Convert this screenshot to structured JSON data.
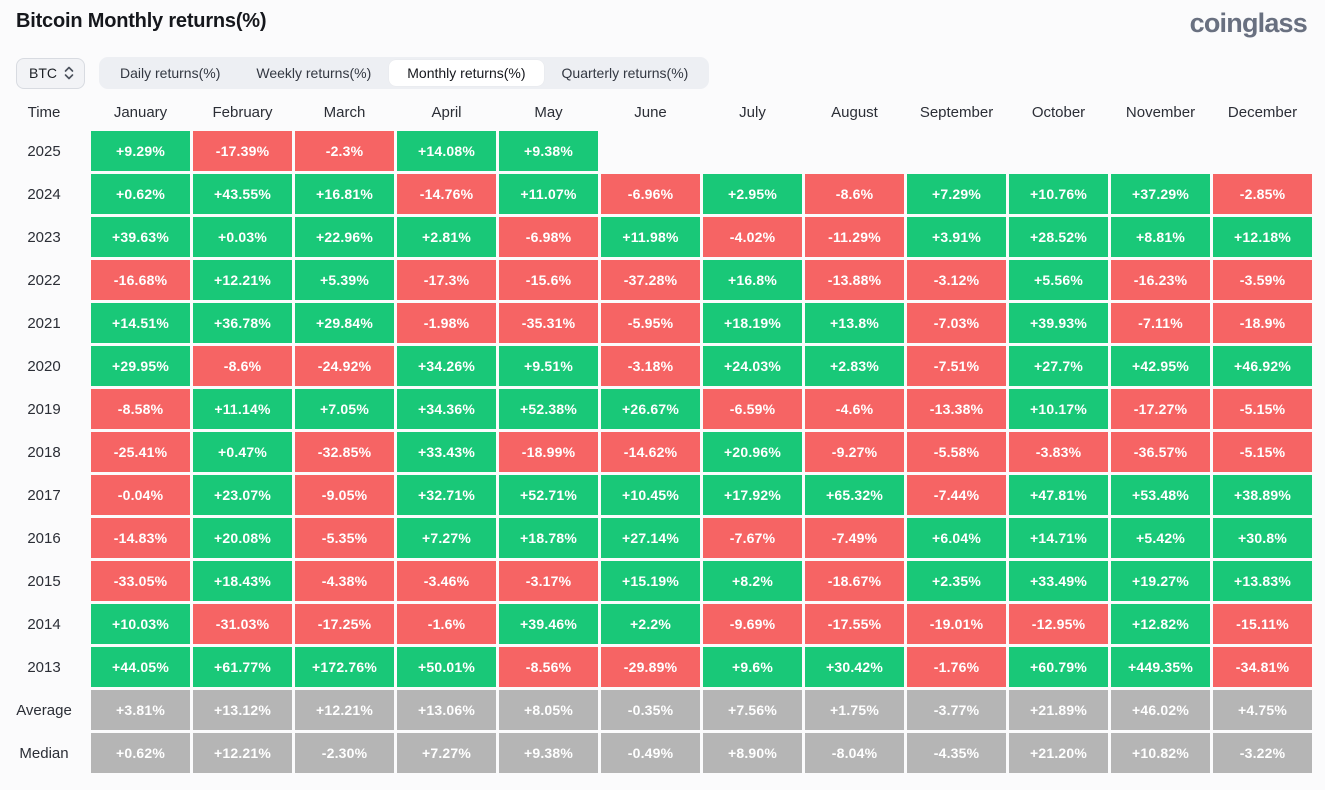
{
  "header": {
    "title": "Bitcoin Monthly returns(%)",
    "logo_text": "coinglass"
  },
  "controls": {
    "symbol_select": {
      "value": "BTC",
      "icon": "select-updown-icon"
    },
    "tabs": [
      {
        "label": "Daily returns(%)",
        "active": false
      },
      {
        "label": "Weekly returns(%)",
        "active": false
      },
      {
        "label": "Monthly returns(%)",
        "active": true
      },
      {
        "label": "Quarterly returns(%)",
        "active": false
      }
    ]
  },
  "chart_data": {
    "type": "heatmap",
    "title": "Bitcoin Monthly returns(%)",
    "time_column_header": "Time",
    "columns": [
      "January",
      "February",
      "March",
      "April",
      "May",
      "June",
      "July",
      "August",
      "September",
      "October",
      "November",
      "December"
    ],
    "rows": [
      {
        "label": "2025",
        "kind": "year",
        "values": [
          "+9.29%",
          "-17.39%",
          "-2.3%",
          "+14.08%",
          "+9.38%",
          "",
          "",
          "",
          "",
          "",
          "",
          ""
        ]
      },
      {
        "label": "2024",
        "kind": "year",
        "values": [
          "+0.62%",
          "+43.55%",
          "+16.81%",
          "-14.76%",
          "+11.07%",
          "-6.96%",
          "+2.95%",
          "-8.6%",
          "+7.29%",
          "+10.76%",
          "+37.29%",
          "-2.85%"
        ]
      },
      {
        "label": "2023",
        "kind": "year",
        "values": [
          "+39.63%",
          "+0.03%",
          "+22.96%",
          "+2.81%",
          "-6.98%",
          "+11.98%",
          "-4.02%",
          "-11.29%",
          "+3.91%",
          "+28.52%",
          "+8.81%",
          "+12.18%"
        ]
      },
      {
        "label": "2022",
        "kind": "year",
        "values": [
          "-16.68%",
          "+12.21%",
          "+5.39%",
          "-17.3%",
          "-15.6%",
          "-37.28%",
          "+16.8%",
          "-13.88%",
          "-3.12%",
          "+5.56%",
          "-16.23%",
          "-3.59%"
        ]
      },
      {
        "label": "2021",
        "kind": "year",
        "values": [
          "+14.51%",
          "+36.78%",
          "+29.84%",
          "-1.98%",
          "-35.31%",
          "-5.95%",
          "+18.19%",
          "+13.8%",
          "-7.03%",
          "+39.93%",
          "-7.11%",
          "-18.9%"
        ]
      },
      {
        "label": "2020",
        "kind": "year",
        "values": [
          "+29.95%",
          "-8.6%",
          "-24.92%",
          "+34.26%",
          "+9.51%",
          "-3.18%",
          "+24.03%",
          "+2.83%",
          "-7.51%",
          "+27.7%",
          "+42.95%",
          "+46.92%"
        ]
      },
      {
        "label": "2019",
        "kind": "year",
        "values": [
          "-8.58%",
          "+11.14%",
          "+7.05%",
          "+34.36%",
          "+52.38%",
          "+26.67%",
          "-6.59%",
          "-4.6%",
          "-13.38%",
          "+10.17%",
          "-17.27%",
          "-5.15%"
        ]
      },
      {
        "label": "2018",
        "kind": "year",
        "values": [
          "-25.41%",
          "+0.47%",
          "-32.85%",
          "+33.43%",
          "-18.99%",
          "-14.62%",
          "+20.96%",
          "-9.27%",
          "-5.58%",
          "-3.83%",
          "-36.57%",
          "-5.15%"
        ]
      },
      {
        "label": "2017",
        "kind": "year",
        "values": [
          "-0.04%",
          "+23.07%",
          "-9.05%",
          "+32.71%",
          "+52.71%",
          "+10.45%",
          "+17.92%",
          "+65.32%",
          "-7.44%",
          "+47.81%",
          "+53.48%",
          "+38.89%"
        ]
      },
      {
        "label": "2016",
        "kind": "year",
        "values": [
          "-14.83%",
          "+20.08%",
          "-5.35%",
          "+7.27%",
          "+18.78%",
          "+27.14%",
          "-7.67%",
          "-7.49%",
          "+6.04%",
          "+14.71%",
          "+5.42%",
          "+30.8%"
        ]
      },
      {
        "label": "2015",
        "kind": "year",
        "values": [
          "-33.05%",
          "+18.43%",
          "-4.38%",
          "-3.46%",
          "-3.17%",
          "+15.19%",
          "+8.2%",
          "-18.67%",
          "+2.35%",
          "+33.49%",
          "+19.27%",
          "+13.83%"
        ]
      },
      {
        "label": "2014",
        "kind": "year",
        "values": [
          "+10.03%",
          "-31.03%",
          "-17.25%",
          "-1.6%",
          "+39.46%",
          "+2.2%",
          "-9.69%",
          "-17.55%",
          "-19.01%",
          "-12.95%",
          "+12.82%",
          "-15.11%"
        ]
      },
      {
        "label": "2013",
        "kind": "year",
        "values": [
          "+44.05%",
          "+61.77%",
          "+172.76%",
          "+50.01%",
          "-8.56%",
          "-29.89%",
          "+9.6%",
          "+30.42%",
          "-1.76%",
          "+60.79%",
          "+449.35%",
          "-34.81%"
        ]
      },
      {
        "label": "Average",
        "kind": "summary",
        "values": [
          "+3.81%",
          "+13.12%",
          "+12.21%",
          "+13.06%",
          "+8.05%",
          "-0.35%",
          "+7.56%",
          "+1.75%",
          "-3.77%",
          "+21.89%",
          "+46.02%",
          "+4.75%"
        ]
      },
      {
        "label": "Median",
        "kind": "summary",
        "values": [
          "+0.62%",
          "+12.21%",
          "-2.30%",
          "+7.27%",
          "+9.38%",
          "-0.49%",
          "+8.90%",
          "-8.04%",
          "-4.35%",
          "+21.20%",
          "+10.82%",
          "-3.22%"
        ]
      }
    ]
  },
  "colors": {
    "positive": "#19c878",
    "negative": "#f66464",
    "summary": "#b5b5b5"
  }
}
